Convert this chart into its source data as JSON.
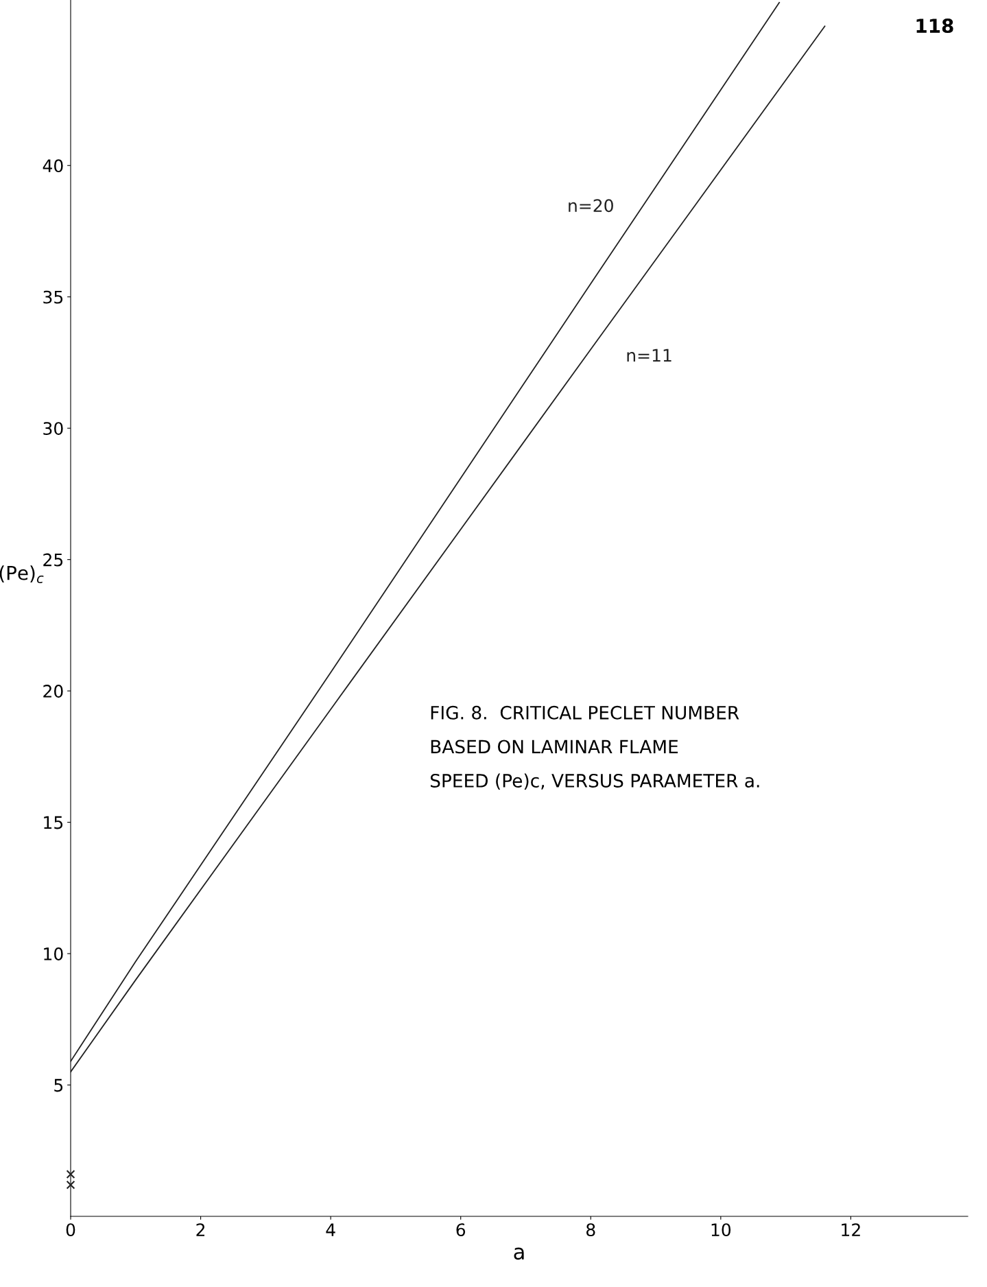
{
  "chart_data": {
    "type": "line",
    "xlabel": "a",
    "ylabel": "(Pe)$_{c}$",
    "series": [
      {
        "name": "n=20",
        "color": "#222222",
        "x": [
          0,
          1,
          4,
          8,
          10.9
        ],
        "values": [
          5.9,
          9.7,
          20.7,
          35.5,
          46.2
        ]
      },
      {
        "name": "n=11",
        "color": "#222222",
        "x": [
          0,
          1,
          4,
          8,
          11.6
        ],
        "values": [
          5.5,
          9.0,
          19.3,
          33.0,
          45.3
        ]
      },
      {
        "type": "scatter",
        "color": "#222222",
        "x": [
          0,
          0
        ],
        "values": [
          1.6,
          1.2
        ],
        "marker": "cross"
      }
    ],
    "xlim": [
      0,
      13.8
    ],
    "ylim": [
      0,
      46.3
    ],
    "xticks": [
      0,
      2,
      4,
      6,
      8,
      10,
      12
    ],
    "yticks": [
      5,
      10,
      15,
      20,
      25,
      30,
      35,
      40
    ],
    "grid": false,
    "legend": false,
    "marker": "none",
    "line_style": "solid",
    "annotations": [
      "118",
      "FIG. 8.  CRITICAL PECLET NUMBER\nBASED ON LAMINAR FLAME\nSPEED (Pe)c, VERSUS PARAMETER a."
    ]
  }
}
